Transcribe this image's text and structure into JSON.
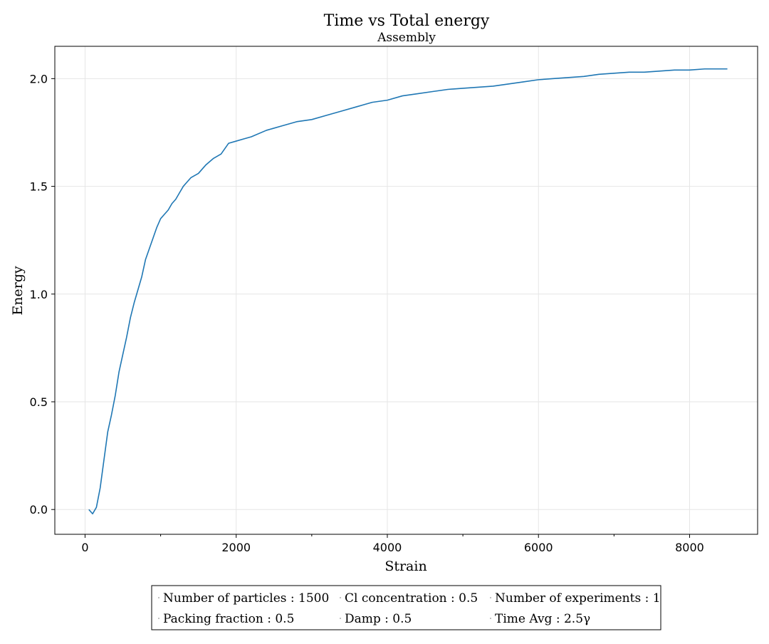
{
  "chart_data": {
    "type": "line",
    "title": "Time vs Total energy",
    "subtitle": "Assembly",
    "xlabel": "Strain",
    "ylabel": "Energy",
    "xlim": [
      -400,
      8900
    ],
    "ylim": [
      -0.115,
      2.15
    ],
    "xticks": [
      0,
      2000,
      4000,
      6000,
      8000
    ],
    "xtick_labels": [
      "0",
      "2000",
      "4000",
      "6000",
      "8000"
    ],
    "xminor_ticks": [
      1000,
      3000,
      5000,
      7000
    ],
    "yticks": [
      0.0,
      0.5,
      1.0,
      1.5,
      2.0
    ],
    "ytick_labels": [
      "0.0",
      "0.5",
      "1.0",
      "1.5",
      "2.0"
    ],
    "grid": true,
    "line_color": "#1f77b4",
    "series": [
      {
        "x": [
          50,
          100,
          150,
          200,
          250,
          300,
          350,
          400,
          450,
          500,
          550,
          600,
          650,
          700,
          750,
          800,
          850,
          900,
          950,
          1000,
          1050,
          1100,
          1150,
          1200,
          1250,
          1300,
          1350,
          1400,
          1500,
          1600,
          1700,
          1800,
          1900,
          2000,
          2100,
          2200,
          2400,
          2600,
          2800,
          3000,
          3200,
          3400,
          3600,
          3800,
          4000,
          4200,
          4400,
          4600,
          4800,
          5000,
          5200,
          5400,
          5600,
          5800,
          6000,
          6200,
          6400,
          6600,
          6800,
          7000,
          7200,
          7400,
          7600,
          7800,
          8000,
          8200,
          8400,
          8500
        ],
        "y": [
          0.0,
          -0.02,
          0.01,
          0.1,
          0.23,
          0.36,
          0.44,
          0.53,
          0.64,
          0.72,
          0.8,
          0.89,
          0.96,
          1.02,
          1.08,
          1.16,
          1.21,
          1.26,
          1.31,
          1.35,
          1.37,
          1.39,
          1.42,
          1.44,
          1.47,
          1.5,
          1.52,
          1.54,
          1.56,
          1.6,
          1.63,
          1.65,
          1.7,
          1.71,
          1.72,
          1.73,
          1.76,
          1.78,
          1.8,
          1.81,
          1.83,
          1.85,
          1.87,
          1.89,
          1.9,
          1.92,
          1.93,
          1.94,
          1.95,
          1.955,
          1.96,
          1.965,
          1.975,
          1.985,
          1.995,
          2.0,
          2.005,
          2.01,
          2.02,
          2.025,
          2.03,
          2.03,
          2.035,
          2.04,
          2.04,
          2.045,
          2.045,
          2.045
        ]
      }
    ],
    "legend": {
      "placement": "bottom",
      "columns": 3,
      "entries": [
        "Number of particles : 1500",
        "Cl concentration : 0.5",
        "Number of experiments : 1",
        "Packing fraction : 0.5",
        "Damp : 0.5",
        "Time Avg : 2.5γ"
      ]
    }
  }
}
